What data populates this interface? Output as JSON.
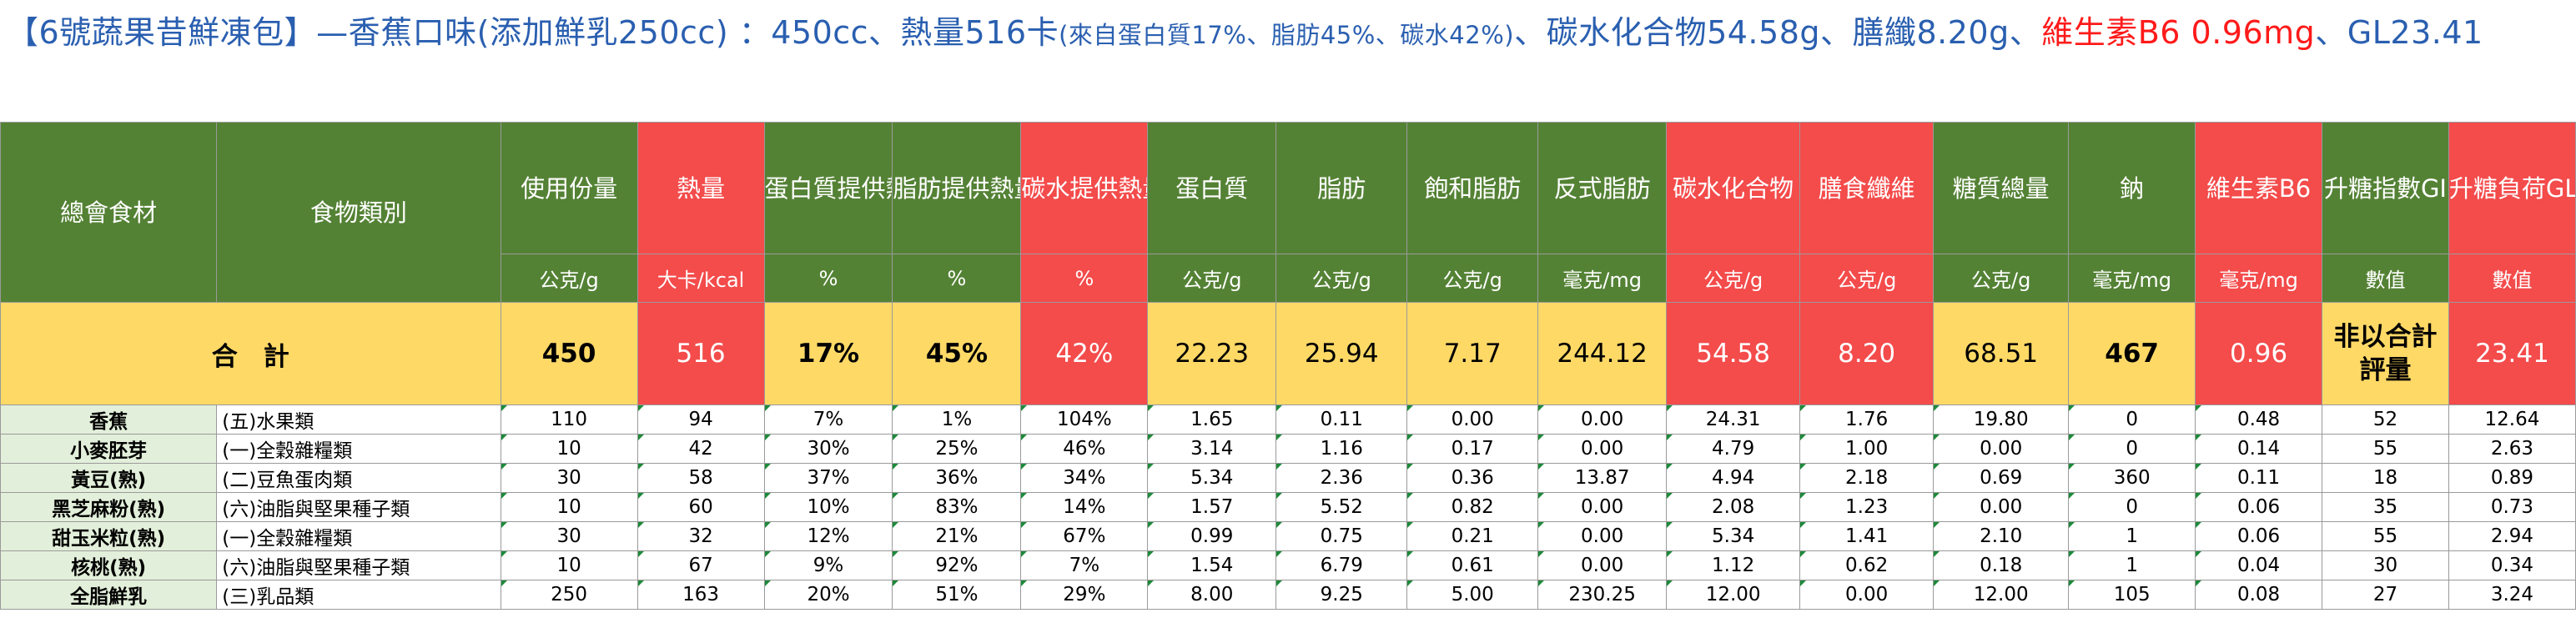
{
  "title": {
    "part1": "【6號蔬果昔鮮凍包】—香蕉口味(添加鮮乳250cc) ：450cc、熱量516卡",
    "part2": "(來自蛋白質17%、脂肪45%、碳水42%)",
    "part3": "、碳水化合物54.58g、膳纖8.20g、",
    "part4": "維生素B6 0.96mg",
    "part5": "、GL23.41"
  },
  "headers": [
    "總會食材",
    "食物類別",
    "使用份量",
    "熱量",
    "蛋白質提供熱量",
    "脂肪提供熱量",
    "碳水提供熱量",
    "蛋白質",
    "脂肪",
    "飽和脂肪",
    "反式脂肪",
    "碳水化合物",
    "膳食纖維",
    "糖質總量",
    "鈉",
    "維生素B6",
    "升糖指數GI",
    "升糖負荷GL"
  ],
  "units": [
    "",
    "",
    "公克/g",
    "大卡/kcal",
    "%",
    "%",
    "%",
    "公克/g",
    "公克/g",
    "公克/g",
    "毫克/mg",
    "公克/g",
    "公克/g",
    "公克/g",
    "毫克/mg",
    "毫克/mg",
    "數值",
    "數值"
  ],
  "total": {
    "label": "合　計",
    "values": [
      "450",
      "516",
      "17%",
      "45%",
      "42%",
      "22.23",
      "25.94",
      "7.17",
      "244.12",
      "54.58",
      "8.20",
      "68.51",
      "467",
      "0.96",
      "非以合計評量",
      "23.41"
    ]
  },
  "rows": [
    {
      "name": "香蕉",
      "category": "(五)水果類",
      "values": [
        "110",
        "94",
        "7%",
        "1%",
        "104%",
        "1.65",
        "0.11",
        "0.00",
        "0.00",
        "24.31",
        "1.76",
        "19.80",
        "0",
        "0.48",
        "52",
        "12.64"
      ]
    },
    {
      "name": "小麥胚芽",
      "category": "(一)全穀雜糧類",
      "values": [
        "10",
        "42",
        "30%",
        "25%",
        "46%",
        "3.14",
        "1.16",
        "0.17",
        "0.00",
        "4.79",
        "1.00",
        "0.00",
        "0",
        "0.14",
        "55",
        "2.63"
      ]
    },
    {
      "name": "黃豆(熟)",
      "category": "(二)豆魚蛋肉類",
      "values": [
        "30",
        "58",
        "37%",
        "36%",
        "34%",
        "5.34",
        "2.36",
        "0.36",
        "13.87",
        "4.94",
        "2.18",
        "0.69",
        "360",
        "0.11",
        "18",
        "0.89"
      ]
    },
    {
      "name": "黑芝麻粉(熟)",
      "category": "(六)油脂與堅果種子類",
      "values": [
        "10",
        "60",
        "10%",
        "83%",
        "14%",
        "1.57",
        "5.52",
        "0.82",
        "0.00",
        "2.08",
        "1.23",
        "0.00",
        "0",
        "0.06",
        "35",
        "0.73"
      ]
    },
    {
      "name": "甜玉米粒(熟)",
      "category": "(一)全穀雜糧類",
      "values": [
        "30",
        "32",
        "12%",
        "21%",
        "67%",
        "0.99",
        "0.75",
        "0.21",
        "0.00",
        "5.34",
        "1.41",
        "2.10",
        "1",
        "0.06",
        "55",
        "2.94"
      ]
    },
    {
      "name": "核桃(熟)",
      "category": "(六)油脂與堅果種子類",
      "values": [
        "10",
        "67",
        "9%",
        "92%",
        "7%",
        "1.54",
        "6.79",
        "0.61",
        "0.00",
        "1.12",
        "0.62",
        "0.18",
        "1",
        "0.04",
        "30",
        "0.34"
      ]
    },
    {
      "name": "全脂鮮乳",
      "category": "(三)乳品類",
      "values": [
        "250",
        "163",
        "20%",
        "51%",
        "29%",
        "8.00",
        "9.25",
        "5.00",
        "230.25",
        "12.00",
        "0.00",
        "12.00",
        "105",
        "0.08",
        "27",
        "3.24"
      ]
    }
  ]
}
